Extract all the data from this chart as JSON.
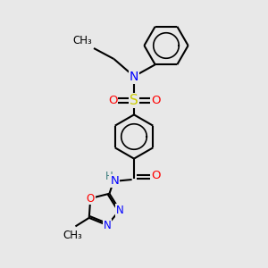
{
  "bg_color": "#e8e8e8",
  "atom_colors": {
    "C": "#000000",
    "N": "#0000ff",
    "O": "#ff0000",
    "S": "#cccc00",
    "H": "#408080"
  },
  "bond_color": "#000000",
  "font_size": 8.5,
  "figsize": [
    3.0,
    3.0
  ],
  "dpi": 100,
  "xlim": [
    0,
    10
  ],
  "ylim": [
    0,
    10
  ]
}
